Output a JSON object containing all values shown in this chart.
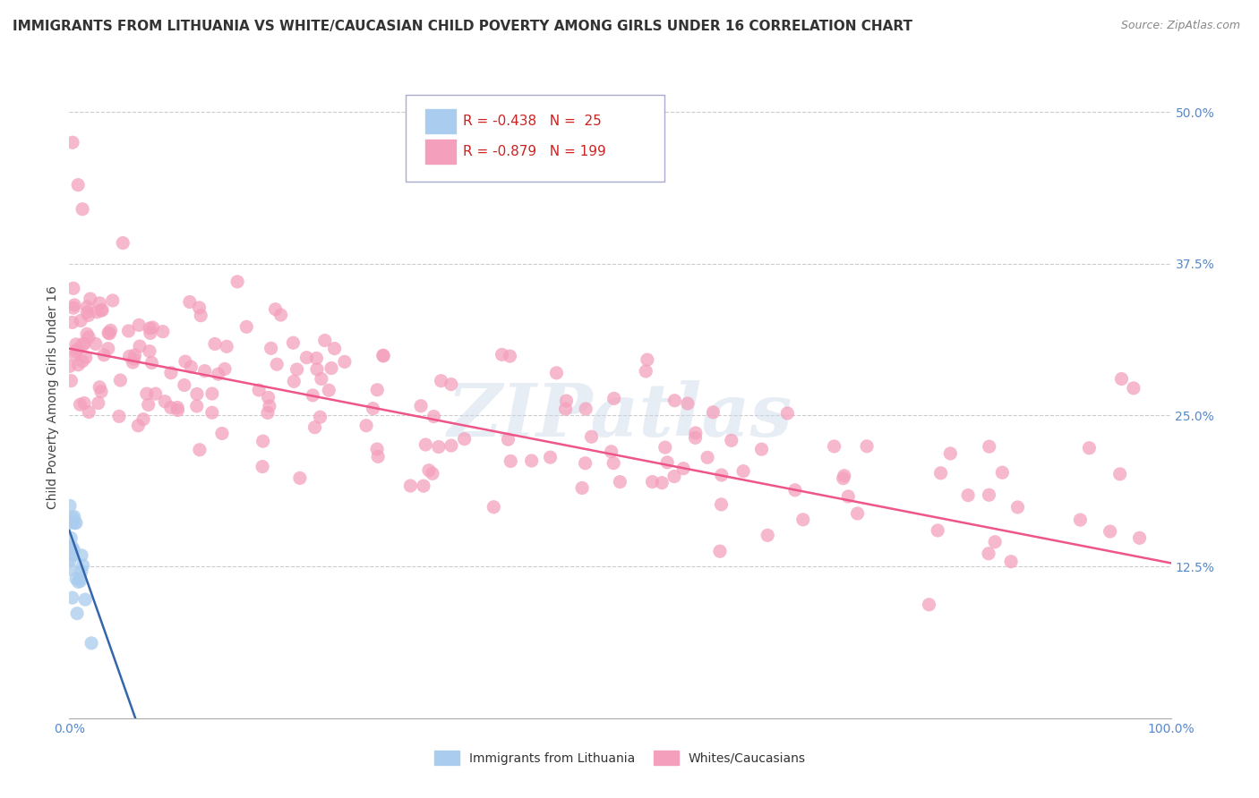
{
  "title": "IMMIGRANTS FROM LITHUANIA VS WHITE/CAUCASIAN CHILD POVERTY AMONG GIRLS UNDER 16 CORRELATION CHART",
  "source": "Source: ZipAtlas.com",
  "ylabel": "Child Poverty Among Girls Under 16",
  "xlim": [
    0,
    100
  ],
  "ylim": [
    0,
    53
  ],
  "ytick_vals": [
    12.5,
    25.0,
    37.5,
    50.0
  ],
  "ytick_labels": [
    "12.5%",
    "25.0%",
    "37.5%",
    "50.0%"
  ],
  "xtick_vals": [
    0,
    100
  ],
  "xtick_labels": [
    "0.0%",
    "100.0%"
  ],
  "legend_blue_label": "R = -0.438   N =  25",
  "legend_pink_label": "R = -0.879   N = 199",
  "bottom_legend_blue": "Immigrants from Lithuania",
  "bottom_legend_pink": "Whites/Caucasians",
  "background_color": "#ffffff",
  "grid_color": "#cccccc",
  "title_fontsize": 11,
  "source_fontsize": 9,
  "ylabel_fontsize": 10,
  "tick_color": "#5588cc",
  "tick_fontsize": 10,
  "legend_fontsize": 11,
  "watermark": "ZIPatlas",
  "blue_color": "#aaccee",
  "blue_line_color": "#3366aa",
  "pink_color": "#f4a0bc",
  "pink_line_color": "#ee5588",
  "pink_line_x0": 0,
  "pink_line_y0": 30.5,
  "pink_line_x1": 100,
  "pink_line_y1": 12.8,
  "blue_line_x0": 0,
  "blue_line_y0": 15.5,
  "blue_line_x1": 6,
  "blue_line_y1": 0.0
}
